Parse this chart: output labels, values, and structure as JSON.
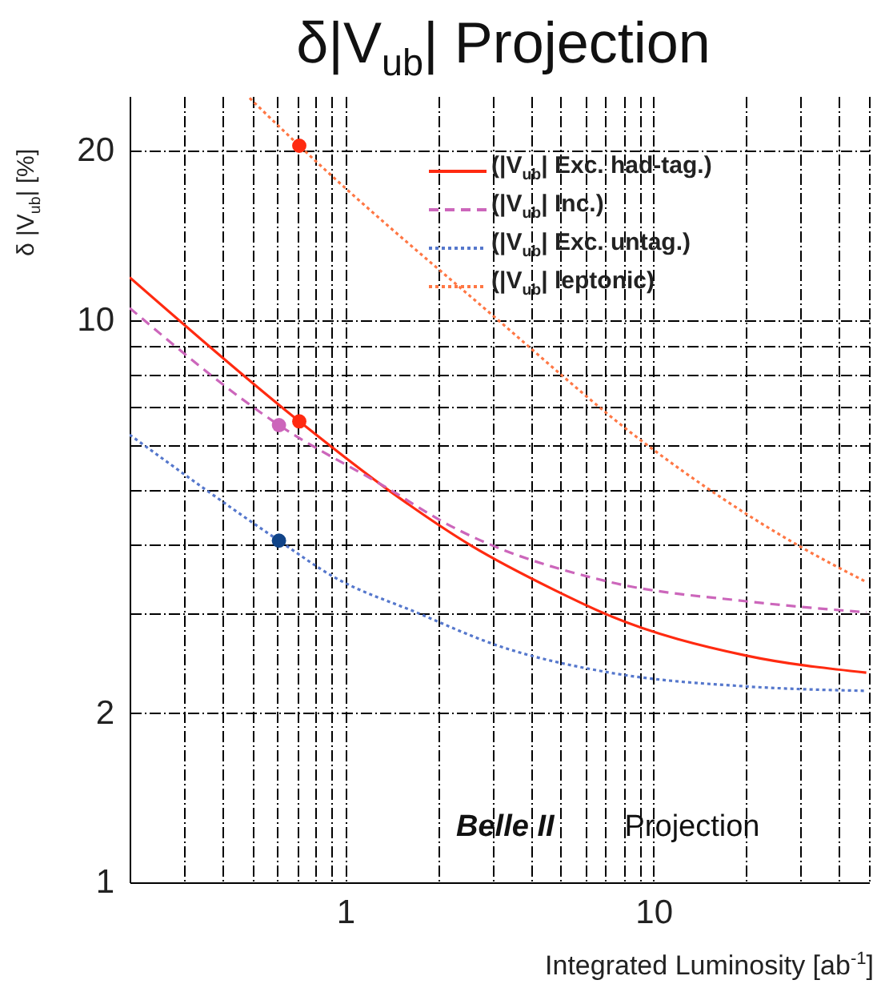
{
  "chart_data": {
    "type": "line",
    "title": "δ|V$_{ub}$| Projection",
    "xlabel": "Integrated Luminosity [ab$^{-1}$]",
    "ylabel": "δ |V$_{ub}$| [%]",
    "annotations": [
      "Belle II",
      "Projection"
    ],
    "log": "xy",
    "grid": true,
    "legend": "top right",
    "xlim": [
      0.2,
      50
    ],
    "ylim": [
      1,
      25
    ],
    "xticks": [
      {
        "value": 0.2,
        "label": null
      },
      {
        "value": 0.3,
        "label": null
      },
      {
        "value": 0.4,
        "label": null
      },
      {
        "value": 0.5,
        "label": null
      },
      {
        "value": 0.6,
        "label": null
      },
      {
        "value": 0.7,
        "label": null
      },
      {
        "value": 0.8,
        "label": null
      },
      {
        "value": 0.9,
        "label": null
      },
      1,
      {
        "value": 2,
        "label": null
      },
      {
        "value": 3,
        "label": null
      },
      {
        "value": 4,
        "label": null
      },
      {
        "value": 5,
        "label": null
      },
      {
        "value": 6,
        "label": null
      },
      {
        "value": 7,
        "label": null
      },
      {
        "value": 8,
        "label": null
      },
      {
        "value": 9,
        "label": null
      },
      10,
      {
        "value": 20,
        "label": null
      },
      {
        "value": 30,
        "label": null
      },
      {
        "value": 40,
        "label": null
      },
      {
        "value": 50,
        "label": null
      }
    ],
    "yticks": [
      1,
      2,
      {
        "value": 3,
        "label": null
      },
      {
        "value": 4,
        "label": null
      },
      {
        "value": 5,
        "label": null
      },
      {
        "value": 6,
        "label": null
      },
      {
        "value": 7,
        "label": null
      },
      {
        "value": 8,
        "label": null
      },
      {
        "value": 9,
        "label": null
      },
      10,
      20
    ],
    "series": [
      {
        "name": "(|V$_{ub}$| Exc. had-tag.)",
        "color": "#ff2a10",
        "line_style": "solid",
        "x": [
          0.2,
          0.71,
          1.39,
          2.56,
          4.77,
          7.2,
          20,
          49
        ],
        "values": [
          11.9,
          6.6,
          4.97,
          3.97,
          3.31,
          2.98,
          2.53,
          2.36
        ]
      },
      {
        "name": "(|V$_{ub}$| Inc.)",
        "color": "#cc66bb",
        "line_style": "dashed",
        "x": [
          0.2,
          0.61,
          1.39,
          2.1,
          7.2,
          20,
          49
        ],
        "values": [
          10.5,
          6.5,
          5.0,
          4.36,
          3.42,
          3.16,
          3.02
        ]
      },
      {
        "name": "(|V$_{ub}$| Exc. untag.)",
        "color": "#5577cc",
        "line_style": "dotted",
        "x": [
          0.2,
          0.61,
          0.92,
          1.7,
          3.16,
          7.2,
          20,
          49
        ],
        "values": [
          6.25,
          4.05,
          3.49,
          3.02,
          2.63,
          2.36,
          2.23,
          2.19
        ]
      },
      {
        "name": "(|V$_{ub}$| leptonic)",
        "color": "#ff7744",
        "line_style": "dotted",
        "x": [
          0.49,
          0.71,
          3.0,
          9.5,
          29.5,
          49
        ],
        "values": [
          24.8,
          20.4,
          10.2,
          6.0,
          3.97,
          3.42
        ]
      },
      {
        "type": "scatter",
        "marker": "circle",
        "x": [
          0.71,
          0.71,
          0.61,
          0.61
        ],
        "values": [
          20.4,
          6.6,
          6.5,
          4.05
        ],
        "colors": [
          "#ff2a10",
          "#ff2a10",
          "#cc66bb",
          "#114488"
        ]
      }
    ]
  }
}
